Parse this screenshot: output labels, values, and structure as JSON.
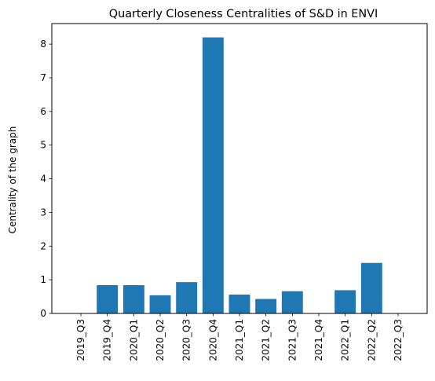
{
  "chart_data": {
    "type": "bar",
    "title": "Quarterly Closeness Centralities of S&D in ENVI",
    "xlabel": "",
    "ylabel": "Centrality of the graph",
    "categories": [
      "2019_Q3",
      "2019_Q4",
      "2020_Q1",
      "2020_Q2",
      "2020_Q3",
      "2020_Q4",
      "2021_Q1",
      "2021_Q2",
      "2021_Q3",
      "2021_Q4",
      "2022_Q1",
      "2022_Q2",
      "2022_Q3"
    ],
    "values": [
      0,
      0.84,
      0.84,
      0.54,
      0.93,
      8.2,
      0.56,
      0.43,
      0.66,
      0,
      0.69,
      1.5,
      0
    ],
    "ylim": [
      0,
      8.61
    ],
    "yticks": [
      0,
      1,
      2,
      3,
      4,
      5,
      6,
      7,
      8
    ],
    "bar_color": "#1f77b4",
    "grid": false,
    "legend": "none"
  }
}
